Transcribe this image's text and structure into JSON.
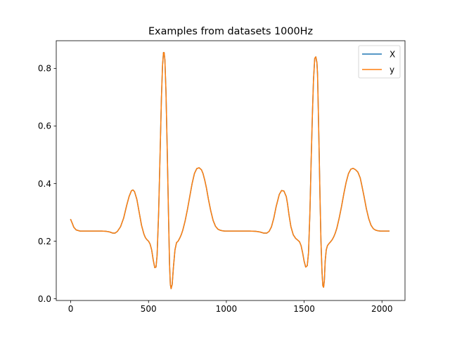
{
  "chart_data": {
    "type": "line",
    "title": "Examples from datasets 1000Hz",
    "xlabel": "",
    "ylabel": "",
    "xlim": [
      -93,
      2148
    ],
    "ylim": [
      -0.006,
      0.896
    ],
    "xticks": [
      0,
      500,
      1000,
      1500,
      2000
    ],
    "xtick_labels": [
      "0",
      "500",
      "1000",
      "1500",
      "2000"
    ],
    "yticks": [
      0.0,
      0.2,
      0.4,
      0.6,
      0.8
    ],
    "ytick_labels": [
      "0.0",
      "0.2",
      "0.4",
      "0.6",
      "0.8"
    ],
    "grid": false,
    "legend_position": "top-right",
    "series": [
      {
        "name": "X",
        "color": "#1f77b4",
        "x": [
          0,
          10,
          20,
          35,
          60,
          100,
          150,
          200,
          230,
          250,
          270,
          285,
          300,
          320,
          340,
          360,
          375,
          390,
          400,
          410,
          425,
          440,
          455,
          470,
          480,
          490,
          500,
          510,
          520,
          530,
          540,
          548,
          555,
          565,
          575,
          583,
          590,
          596,
          600,
          605,
          612,
          620,
          628,
          635,
          640,
          645,
          652,
          660,
          670,
          680,
          690,
          700,
          710,
          720,
          735,
          750,
          765,
          780,
          795,
          810,
          825,
          840,
          850,
          862,
          872,
          885,
          900,
          915,
          930,
          945,
          960,
          975,
          990,
          1005,
          1030,
          1060,
          1100,
          1150,
          1190,
          1215,
          1240,
          1260,
          1275,
          1290,
          1305,
          1320,
          1340,
          1355,
          1370,
          1385,
          1393,
          1403,
          1415,
          1430,
          1445,
          1460,
          1470,
          1480,
          1490,
          1500,
          1510,
          1520,
          1528,
          1537,
          1545,
          1553,
          1560,
          1568,
          1575,
          1582,
          1586,
          1590,
          1596,
          1602,
          1608,
          1615,
          1620,
          1625,
          1630,
          1635,
          1642,
          1650,
          1660,
          1670,
          1680,
          1690,
          1700,
          1710,
          1725,
          1740,
          1755,
          1770,
          1785,
          1800,
          1815,
          1830,
          1845,
          1860,
          1870,
          1885,
          1900,
          1915,
          1930,
          1945,
          1960,
          1975,
          1990,
          2005,
          2020,
          2035,
          2045
        ],
        "y": [
          0.275,
          0.262,
          0.248,
          0.239,
          0.235,
          0.235,
          0.235,
          0.235,
          0.234,
          0.232,
          0.228,
          0.228,
          0.234,
          0.25,
          0.28,
          0.325,
          0.355,
          0.375,
          0.378,
          0.372,
          0.345,
          0.3,
          0.255,
          0.225,
          0.212,
          0.205,
          0.2,
          0.19,
          0.17,
          0.135,
          0.108,
          0.11,
          0.15,
          0.3,
          0.52,
          0.7,
          0.81,
          0.855,
          0.855,
          0.83,
          0.72,
          0.52,
          0.3,
          0.12,
          0.05,
          0.035,
          0.05,
          0.11,
          0.17,
          0.195,
          0.2,
          0.21,
          0.222,
          0.238,
          0.27,
          0.31,
          0.355,
          0.4,
          0.435,
          0.452,
          0.455,
          0.448,
          0.435,
          0.41,
          0.385,
          0.345,
          0.305,
          0.272,
          0.252,
          0.242,
          0.238,
          0.236,
          0.235,
          0.235,
          0.235,
          0.235,
          0.235,
          0.235,
          0.234,
          0.232,
          0.228,
          0.228,
          0.234,
          0.25,
          0.28,
          0.32,
          0.362,
          0.376,
          0.374,
          0.355,
          0.33,
          0.29,
          0.25,
          0.222,
          0.21,
          0.203,
          0.198,
          0.185,
          0.16,
          0.13,
          0.11,
          0.115,
          0.16,
          0.3,
          0.48,
          0.64,
          0.76,
          0.835,
          0.84,
          0.82,
          0.78,
          0.68,
          0.52,
          0.35,
          0.2,
          0.09,
          0.045,
          0.04,
          0.065,
          0.13,
          0.17,
          0.185,
          0.192,
          0.198,
          0.205,
          0.215,
          0.228,
          0.245,
          0.28,
          0.32,
          0.365,
          0.405,
          0.435,
          0.45,
          0.453,
          0.448,
          0.44,
          0.42,
          0.395,
          0.355,
          0.312,
          0.278,
          0.255,
          0.243,
          0.238,
          0.236,
          0.235,
          0.235,
          0.235,
          0.235,
          0.235
        ]
      },
      {
        "name": "y",
        "color": "#ff7f0e",
        "x": [
          0,
          10,
          20,
          35,
          60,
          100,
          150,
          200,
          230,
          250,
          270,
          285,
          300,
          320,
          340,
          360,
          375,
          390,
          400,
          410,
          425,
          440,
          455,
          470,
          480,
          490,
          500,
          510,
          520,
          530,
          540,
          548,
          555,
          565,
          575,
          583,
          590,
          596,
          600,
          605,
          612,
          620,
          628,
          635,
          640,
          645,
          652,
          660,
          670,
          680,
          690,
          700,
          710,
          720,
          735,
          750,
          765,
          780,
          795,
          810,
          825,
          840,
          850,
          862,
          872,
          885,
          900,
          915,
          930,
          945,
          960,
          975,
          990,
          1005,
          1030,
          1060,
          1100,
          1150,
          1190,
          1215,
          1240,
          1260,
          1275,
          1290,
          1305,
          1320,
          1340,
          1355,
          1370,
          1385,
          1393,
          1403,
          1415,
          1430,
          1445,
          1460,
          1470,
          1480,
          1490,
          1500,
          1510,
          1520,
          1528,
          1537,
          1545,
          1553,
          1560,
          1568,
          1575,
          1582,
          1586,
          1590,
          1596,
          1602,
          1608,
          1615,
          1620,
          1625,
          1630,
          1635,
          1642,
          1650,
          1660,
          1670,
          1680,
          1690,
          1700,
          1710,
          1725,
          1740,
          1755,
          1770,
          1785,
          1800,
          1815,
          1830,
          1845,
          1860,
          1870,
          1885,
          1900,
          1915,
          1930,
          1945,
          1960,
          1975,
          1990,
          2005,
          2020,
          2035,
          2045
        ],
        "y": [
          0.275,
          0.262,
          0.248,
          0.239,
          0.235,
          0.235,
          0.235,
          0.235,
          0.234,
          0.232,
          0.228,
          0.228,
          0.234,
          0.25,
          0.28,
          0.325,
          0.355,
          0.375,
          0.378,
          0.372,
          0.345,
          0.3,
          0.255,
          0.225,
          0.212,
          0.205,
          0.2,
          0.19,
          0.17,
          0.135,
          0.108,
          0.11,
          0.15,
          0.3,
          0.52,
          0.7,
          0.81,
          0.855,
          0.855,
          0.83,
          0.72,
          0.52,
          0.3,
          0.12,
          0.05,
          0.035,
          0.05,
          0.11,
          0.17,
          0.195,
          0.2,
          0.21,
          0.222,
          0.238,
          0.27,
          0.31,
          0.355,
          0.4,
          0.435,
          0.452,
          0.455,
          0.448,
          0.435,
          0.41,
          0.385,
          0.345,
          0.305,
          0.272,
          0.252,
          0.242,
          0.238,
          0.236,
          0.235,
          0.235,
          0.235,
          0.235,
          0.235,
          0.235,
          0.234,
          0.232,
          0.228,
          0.228,
          0.234,
          0.25,
          0.28,
          0.32,
          0.362,
          0.376,
          0.374,
          0.355,
          0.33,
          0.29,
          0.25,
          0.222,
          0.21,
          0.203,
          0.198,
          0.185,
          0.16,
          0.13,
          0.11,
          0.115,
          0.16,
          0.3,
          0.48,
          0.64,
          0.76,
          0.835,
          0.84,
          0.82,
          0.78,
          0.68,
          0.52,
          0.35,
          0.2,
          0.09,
          0.045,
          0.04,
          0.065,
          0.13,
          0.17,
          0.185,
          0.192,
          0.198,
          0.205,
          0.215,
          0.228,
          0.245,
          0.28,
          0.32,
          0.365,
          0.405,
          0.435,
          0.45,
          0.453,
          0.448,
          0.44,
          0.42,
          0.395,
          0.355,
          0.312,
          0.278,
          0.255,
          0.243,
          0.238,
          0.236,
          0.235,
          0.235,
          0.235,
          0.235,
          0.235
        ]
      }
    ]
  }
}
